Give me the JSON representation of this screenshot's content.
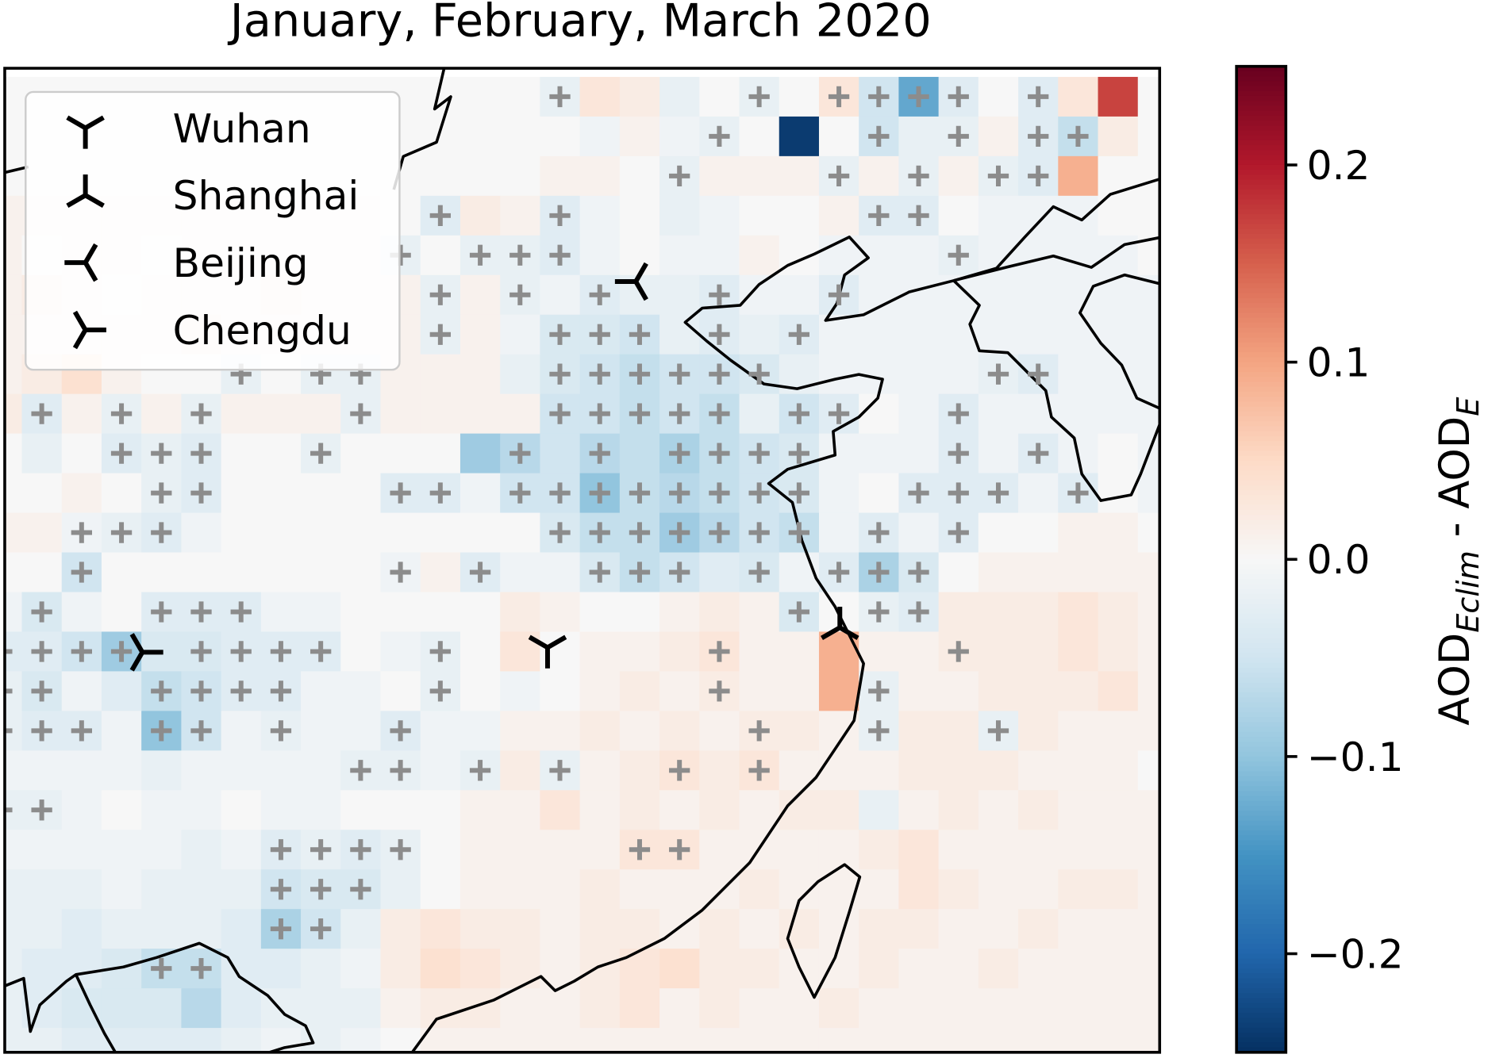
{
  "chart_data": {
    "type": "heatmap",
    "title": "January, February, March 2020",
    "legend": [
      "Wuhan",
      "Shanghai",
      "Beijing",
      "Chengdu"
    ],
    "colorbar_label": [
      "AOD",
      "Eclim",
      " - AOD",
      "E"
    ],
    "clim": [
      -0.25,
      0.25
    ],
    "cticks": [
      {
        "value": -0.2,
        "label": "−0.2"
      },
      {
        "value": -0.1,
        "label": "−0.1"
      },
      {
        "value": 0,
        "label": "0.0"
      },
      0.1,
      0.2
    ],
    "colormap": [
      "#053061",
      "#2166ac",
      "#4393c3",
      "#92c5de",
      "#d1e5f0",
      "#f7f7f7",
      "#fddbc7",
      "#f4a582",
      "#d6604d",
      "#b2182b",
      "#67001f"
    ],
    "values": [
      [
        0,
        0,
        0,
        0,
        0,
        0,
        0,
        0,
        0,
        0,
        0,
        0,
        0,
        0,
        -0.02,
        0.03,
        0.02,
        -0.02,
        0,
        -0.02,
        0,
        0.03,
        -0.05,
        -0.13,
        -0.03,
        0,
        -0.03,
        0.03,
        0.17,
        0
      ],
      [
        0,
        0,
        0,
        0,
        0,
        0,
        0,
        0,
        0,
        0,
        0,
        0,
        0,
        0,
        0,
        -0.01,
        0.01,
        -0.01,
        -0.02,
        0,
        -0.24,
        0,
        -0.05,
        -0.02,
        -0.02,
        0.01,
        -0.03,
        -0.06,
        0.02,
        0
      ],
      [
        0,
        0,
        0,
        0,
        0,
        0,
        0,
        0,
        0,
        0,
        0,
        0,
        0,
        0,
        0.01,
        0.01,
        0,
        -0.02,
        0.01,
        0.01,
        0.01,
        -0.02,
        0.01,
        -0.02,
        0.01,
        -0.02,
        -0.03,
        0.09,
        0,
        0
      ],
      [
        0.01,
        0.01,
        0.01,
        0.01,
        0.01,
        0.01,
        0.01,
        0.01,
        0.01,
        0.01,
        0,
        -0.03,
        0.02,
        0.01,
        -0.03,
        -0.01,
        0,
        -0.02,
        -0.01,
        0,
        0,
        0.01,
        -0.03,
        -0.03,
        0,
        -0.01,
        -0.01,
        -0.01,
        0,
        0
      ],
      [
        0.01,
        0,
        0.01,
        0.01,
        0,
        0.01,
        0.01,
        0.01,
        0.01,
        0.01,
        -0.02,
        0,
        -0.02,
        -0.02,
        -0.03,
        -0.01,
        0,
        -0.01,
        -0.01,
        0.01,
        0,
        -0.01,
        -0.01,
        -0.01,
        -0.02,
        -0.01,
        -0.01,
        -0.01,
        -0.01,
        0
      ],
      [
        0.01,
        0.02,
        0.01,
        0,
        0.01,
        0.01,
        0.01,
        0.02,
        0.01,
        0.01,
        0.01,
        -0.02,
        0.01,
        -0.02,
        -0.01,
        -0.03,
        -0.02,
        -0.02,
        -0.03,
        -0.01,
        -0.01,
        -0.03,
        -0.01,
        -0.01,
        -0.01,
        -0.01,
        -0.01,
        -0.01,
        -0.01,
        -0.01
      ],
      [
        0.01,
        0.01,
        0.01,
        0.01,
        0.01,
        0.02,
        0.01,
        0.01,
        0.01,
        0.01,
        0.01,
        -0.02,
        0.01,
        -0.01,
        -0.04,
        -0.04,
        -0.05,
        -0.02,
        -0.03,
        -0.02,
        -0.03,
        -0.01,
        -0.01,
        -0.01,
        -0.01,
        -0.01,
        -0.01,
        -0.01,
        -0.01,
        -0.01
      ],
      [
        0.01,
        0.02,
        0.04,
        0.01,
        0,
        0,
        -0.02,
        0,
        -0.02,
        -0.02,
        0.01,
        0.01,
        0.01,
        -0.02,
        -0.04,
        -0.05,
        -0.06,
        -0.05,
        -0.05,
        -0.04,
        -0.02,
        -0.01,
        -0.01,
        -0.01,
        -0.01,
        -0.02,
        -0.03,
        -0.01,
        -0.01,
        -0.01
      ],
      [
        0.02,
        -0.03,
        0.01,
        -0.02,
        0.01,
        -0.02,
        0.01,
        0.01,
        0.01,
        -0.02,
        0.01,
        0.01,
        0.01,
        0.01,
        -0.05,
        -0.05,
        -0.06,
        -0.05,
        -0.06,
        -0.02,
        -0.05,
        -0.03,
        0,
        -0.01,
        -0.03,
        -0.01,
        -0.01,
        -0.01,
        -0.01,
        -0.01
      ],
      [
        0,
        -0.02,
        0,
        -0.03,
        -0.02,
        -0.03,
        0,
        0,
        -0.02,
        0,
        0,
        0,
        -0.09,
        -0.07,
        -0.05,
        -0.07,
        -0.06,
        -0.08,
        -0.06,
        -0.05,
        -0.04,
        -0.01,
        -0.01,
        -0.01,
        -0.03,
        -0.01,
        -0.03,
        -0.01,
        0,
        -0.01
      ],
      [
        0,
        0,
        0.01,
        0,
        -0.02,
        -0.03,
        0,
        0,
        0,
        0,
        -0.03,
        -0.03,
        -0.01,
        -0.05,
        -0.05,
        -0.1,
        -0.06,
        -0.07,
        -0.06,
        -0.05,
        -0.04,
        -0.01,
        0,
        -0.03,
        -0.03,
        -0.03,
        -0.01,
        -0.03,
        0,
        -0.01
      ],
      [
        0.01,
        0.01,
        -0.01,
        -0.02,
        -0.03,
        -0.01,
        0,
        0,
        0,
        0,
        0,
        0,
        0,
        0,
        -0.04,
        -0.06,
        -0.06,
        -0.09,
        -0.07,
        -0.05,
        -0.06,
        -0.01,
        -0.03,
        -0.01,
        -0.03,
        0,
        0,
        0.01,
        0.01,
        0
      ],
      [
        0,
        0,
        -0.05,
        0,
        0,
        0,
        0,
        0,
        0,
        0,
        -0.01,
        0.01,
        -0.03,
        -0.01,
        -0.01,
        -0.04,
        -0.06,
        -0.05,
        -0.03,
        -0.04,
        -0.01,
        -0.03,
        -0.08,
        -0.04,
        0,
        0.01,
        0.01,
        0.01,
        0.01,
        0.01
      ],
      [
        -0.01,
        -0.04,
        -0.01,
        0,
        -0.03,
        -0.03,
        -0.03,
        -0.01,
        -0.01,
        0,
        0,
        0,
        0,
        0.02,
        0.01,
        0,
        0,
        0.01,
        0.02,
        0.01,
        -0.04,
        0,
        -0.02,
        -0.03,
        0.02,
        0.02,
        0.02,
        0.03,
        0.02,
        0.01
      ],
      [
        -0.03,
        -0.03,
        -0.05,
        -0.09,
        -0.04,
        -0.04,
        -0.03,
        -0.03,
        -0.03,
        0,
        -0.01,
        -0.02,
        0,
        0.03,
        0,
        0.01,
        0.01,
        0.02,
        0.03,
        0.01,
        0.01,
        0.09,
        0.01,
        0.01,
        0.02,
        0.02,
        0.02,
        0.03,
        0.02,
        0.01
      ],
      [
        -0.02,
        -0.04,
        -0.01,
        -0.03,
        -0.06,
        -0.05,
        -0.03,
        -0.03,
        -0.01,
        -0.01,
        0,
        -0.02,
        0,
        -0.01,
        0,
        0.01,
        0.02,
        0.01,
        0.02,
        0.01,
        0.01,
        0.09,
        -0.02,
        0.01,
        0.01,
        0.02,
        0.02,
        0.02,
        0.03,
        0.01
      ],
      [
        -0.02,
        -0.03,
        -0.03,
        -0.01,
        -0.1,
        -0.05,
        -0.01,
        -0.02,
        -0.01,
        -0.01,
        -0.03,
        -0.01,
        -0.01,
        0.01,
        0.01,
        0.02,
        0.01,
        0.02,
        0.01,
        0.02,
        0.02,
        0.01,
        -0.02,
        0.02,
        0.02,
        -0.02,
        0.02,
        0.01,
        0.01,
        0.01
      ],
      [
        -0.01,
        -0.01,
        -0.01,
        -0.01,
        -0.02,
        -0.01,
        -0.01,
        -0.01,
        -0.01,
        -0.02,
        -0.02,
        -0.01,
        -0.02,
        0.02,
        -0.02,
        0.01,
        0.02,
        0.03,
        0.02,
        0.03,
        0.01,
        0.01,
        0.01,
        0.02,
        0.02,
        0.02,
        0.01,
        0.01,
        0.01,
        0
      ],
      [
        -0.02,
        -0.02,
        -0.01,
        0,
        -0.01,
        -0.01,
        0,
        -0.01,
        -0.01,
        0,
        0,
        0,
        0.01,
        0.01,
        0.03,
        0.01,
        0.02,
        0.01,
        0.02,
        0.01,
        0.02,
        0.02,
        -0.02,
        0.01,
        0.02,
        0.01,
        0.02,
        0.01,
        0.01,
        0.01
      ],
      [
        -0.01,
        -0.01,
        -0.01,
        -0.01,
        -0.01,
        -0.02,
        -0.01,
        -0.03,
        -0.02,
        -0.03,
        -0.02,
        0,
        0.01,
        0.01,
        0.01,
        0.01,
        0.03,
        0.03,
        0.01,
        0.01,
        0.01,
        0.01,
        0.02,
        0.03,
        0.01,
        0.01,
        0.01,
        0.01,
        0.01,
        0.01
      ],
      [
        -0.02,
        -0.02,
        -0.02,
        -0.01,
        -0.02,
        -0.02,
        -0.02,
        -0.05,
        -0.04,
        -0.04,
        -0.02,
        0,
        0.01,
        0.01,
        0.01,
        0.02,
        0.01,
        0.01,
        0.01,
        0.02,
        0.01,
        0.01,
        0.01,
        0.03,
        0.02,
        0.01,
        0.01,
        0.02,
        0.02,
        0.01
      ],
      [
        -0.02,
        -0.02,
        -0.03,
        -0.02,
        -0.02,
        -0.02,
        -0.03,
        -0.08,
        -0.05,
        -0.02,
        0.02,
        0.03,
        0.02,
        0.02,
        0.01,
        0.02,
        0.02,
        0.01,
        0.02,
        0.01,
        0.02,
        0.01,
        0.02,
        0.02,
        0.01,
        0.01,
        0.02,
        0.01,
        0.01,
        0.01
      ],
      [
        -0.02,
        -0.03,
        -0.03,
        -0.04,
        -0.06,
        -0.06,
        -0.03,
        -0.03,
        -0.02,
        -0.01,
        0.02,
        0.04,
        0.03,
        0.02,
        0.01,
        0.02,
        0.03,
        0.04,
        0.02,
        0.02,
        0.01,
        0.01,
        0.02,
        0.01,
        0.01,
        0.02,
        0.01,
        0.01,
        0.01,
        0.01
      ],
      [
        -0.02,
        -0.03,
        -0.04,
        -0.04,
        -0.04,
        -0.07,
        -0.03,
        -0.02,
        -0.02,
        -0.02,
        0.01,
        0.02,
        0.02,
        0.01,
        0.01,
        0.02,
        0.03,
        0.01,
        0.02,
        0.01,
        0.01,
        0.02,
        0.01,
        0.01,
        0.01,
        0.01,
        0.01,
        0.01,
        0.01,
        0.01
      ],
      [
        -0.02,
        -0.02,
        -0.03,
        -0.03,
        -0.03,
        -0.03,
        -0.02,
        -0.01,
        -0.02,
        -0.01,
        0,
        0.01,
        0.01,
        0.01,
        0.01,
        0.01,
        0.01,
        0.01,
        0.01,
        0.01,
        0.01,
        0.01,
        0.01,
        0.01,
        0.01,
        0.01,
        0.01,
        0.01,
        0.01,
        0.01
      ]
    ],
    "significant": [
      [
        14,
        19,
        21,
        22,
        23,
        24,
        26
      ],
      [
        18,
        22,
        24,
        26,
        27
      ],
      [
        17,
        21,
        23,
        25,
        26
      ],
      [
        11,
        14,
        22,
        23
      ],
      [
        10,
        12,
        13,
        14,
        24
      ],
      [
        11,
        13,
        15,
        18,
        21
      ],
      [
        11,
        14,
        15,
        16,
        18,
        20
      ],
      [
        6,
        8,
        9,
        14,
        15,
        16,
        17,
        18,
        19,
        25,
        26
      ],
      [
        1,
        3,
        5,
        9,
        14,
        15,
        16,
        17,
        18,
        20,
        21,
        24
      ],
      [
        3,
        4,
        5,
        8,
        13,
        15,
        17,
        18,
        19,
        20,
        24,
        26
      ],
      [
        4,
        5,
        10,
        11,
        13,
        14,
        15,
        16,
        17,
        18,
        19,
        20,
        23,
        24,
        25,
        27
      ],
      [
        2,
        3,
        4,
        14,
        15,
        16,
        17,
        18,
        19,
        20,
        22,
        24
      ],
      [
        2,
        10,
        12,
        15,
        16,
        17,
        19,
        21,
        22,
        23
      ],
      [
        1,
        4,
        5,
        6,
        20,
        22,
        23
      ],
      [
        0,
        1,
        2,
        3,
        5,
        6,
        7,
        8,
        11,
        18,
        24
      ],
      [
        0,
        1,
        4,
        5,
        6,
        7,
        11,
        18,
        22
      ],
      [
        0,
        1,
        2,
        4,
        5,
        7,
        10,
        19,
        22,
        25
      ],
      [
        9,
        10,
        12,
        14,
        17,
        19
      ],
      [
        0,
        1
      ],
      [
        7,
        8,
        9,
        10,
        16,
        17
      ],
      [
        7,
        8,
        9
      ],
      [
        7,
        8
      ],
      [
        4,
        5
      ],
      [],
      []
    ]
  }
}
